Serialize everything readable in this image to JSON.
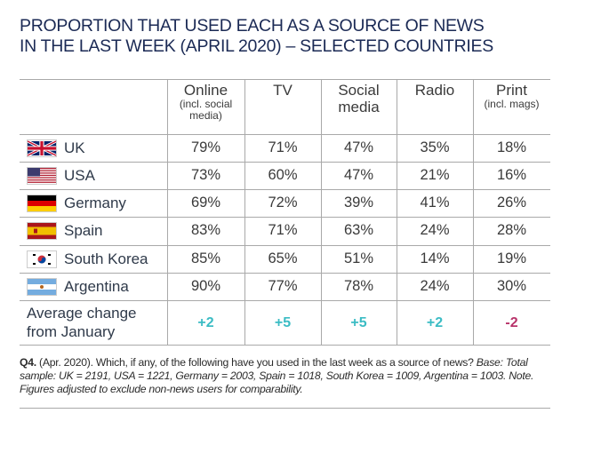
{
  "title": {
    "line1": "PROPORTION THAT USED EACH AS A SOURCE OF NEWS",
    "line2": "IN THE LAST WEEK (APRIL 2020) – SELECTED COUNTRIES"
  },
  "columns": [
    {
      "main": "Online",
      "sub": "(incl. social media)"
    },
    {
      "main": "TV",
      "sub": ""
    },
    {
      "main": "Social media",
      "sub": ""
    },
    {
      "main": "Radio",
      "sub": ""
    },
    {
      "main": "Print",
      "sub": "(incl. mags)"
    }
  ],
  "rows": [
    {
      "country": "UK",
      "flag": "uk-flag-icon",
      "values": [
        "79%",
        "71%",
        "47%",
        "35%",
        "18%"
      ]
    },
    {
      "country": "USA",
      "flag": "usa-flag-icon",
      "values": [
        "73%",
        "60%",
        "47%",
        "21%",
        "16%"
      ]
    },
    {
      "country": "Germany",
      "flag": "germany-flag-icon",
      "values": [
        "69%",
        "72%",
        "39%",
        "41%",
        "26%"
      ]
    },
    {
      "country": "Spain",
      "flag": "spain-flag-icon",
      "values": [
        "83%",
        "71%",
        "63%",
        "24%",
        "28%"
      ]
    },
    {
      "country": "South Korea",
      "flag": "south-korea-flag-icon",
      "values": [
        "85%",
        "65%",
        "51%",
        "14%",
        "19%"
      ]
    },
    {
      "country": "Argentina",
      "flag": "argentina-flag-icon",
      "values": [
        "90%",
        "77%",
        "78%",
        "24%",
        "30%"
      ]
    }
  ],
  "average": {
    "label": "Average change from January",
    "values": [
      "+2",
      "+5",
      "+5",
      "+2",
      "-2"
    ],
    "colors": [
      "#3bbcc4",
      "#3bbcc4",
      "#3bbcc4",
      "#3bbcc4",
      "#b8336a"
    ]
  },
  "note": {
    "q": "Q4.",
    "text": " (Apr. 2020). Which, if any, of the following have you used in the last week as a source of news? ",
    "italic": "Base: Total sample: UK = 2191, USA = 1221, Germany = 2003, Spain = 1018, South Korea = 1009, Argentina = 1003. Note. Figures adjusted to exclude non-news users for comparability."
  },
  "colors": {
    "title": "#1b2a55",
    "grid": "#a9a9a9",
    "positive": "#3bbcc4",
    "negative": "#b8336a"
  }
}
